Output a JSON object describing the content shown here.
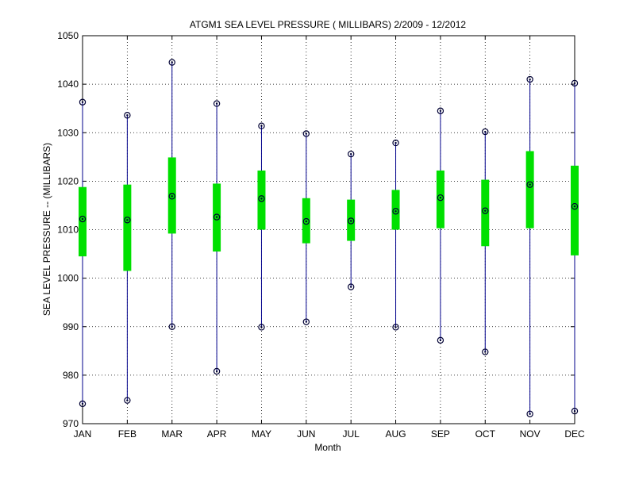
{
  "chart_data": {
    "type": "box",
    "title": "ATGM1  SEA LEVEL PRESSURE ( MILLIBARS) 2/2009 - 12/2012",
    "xlabel": "Month",
    "ylabel": "SEA LEVEL PRESSURE -- (MILLIBARS)",
    "ylim": [
      970,
      1050
    ],
    "yticks": [
      970,
      980,
      990,
      1000,
      1010,
      1020,
      1030,
      1040,
      1050
    ],
    "grid": true,
    "categories": [
      "JAN",
      "FEB",
      "MAR",
      "APR",
      "MAY",
      "JUN",
      "JUL",
      "AUG",
      "SEP",
      "OCT",
      "NOV",
      "DEC"
    ],
    "min": [
      974.1,
      974.8,
      990.0,
      980.8,
      989.9,
      991.0,
      998.2,
      989.9,
      987.2,
      984.8,
      972.0,
      972.6
    ],
    "box_low": [
      1004.5,
      1001.5,
      1009.2,
      1005.5,
      1010.0,
      1007.2,
      1007.7,
      1010.0,
      1010.3,
      1006.6,
      1010.3,
      1004.7
    ],
    "mean": [
      1012.2,
      1012.0,
      1016.9,
      1012.6,
      1016.4,
      1011.7,
      1011.8,
      1013.8,
      1016.6,
      1013.9,
      1019.3,
      1014.8
    ],
    "box_high": [
      1018.8,
      1019.3,
      1024.9,
      1019.5,
      1022.2,
      1016.5,
      1016.2,
      1018.2,
      1022.2,
      1020.3,
      1026.2,
      1023.2
    ],
    "max": [
      1036.3,
      1033.6,
      1044.5,
      1036.0,
      1031.4,
      1029.8,
      1025.6,
      1027.9,
      1034.5,
      1030.2,
      1041.0,
      1040.2
    ],
    "colors": {
      "whisker": "#00008b",
      "box": "#00e000",
      "marker": "#000033",
      "grid": "#000000"
    }
  }
}
